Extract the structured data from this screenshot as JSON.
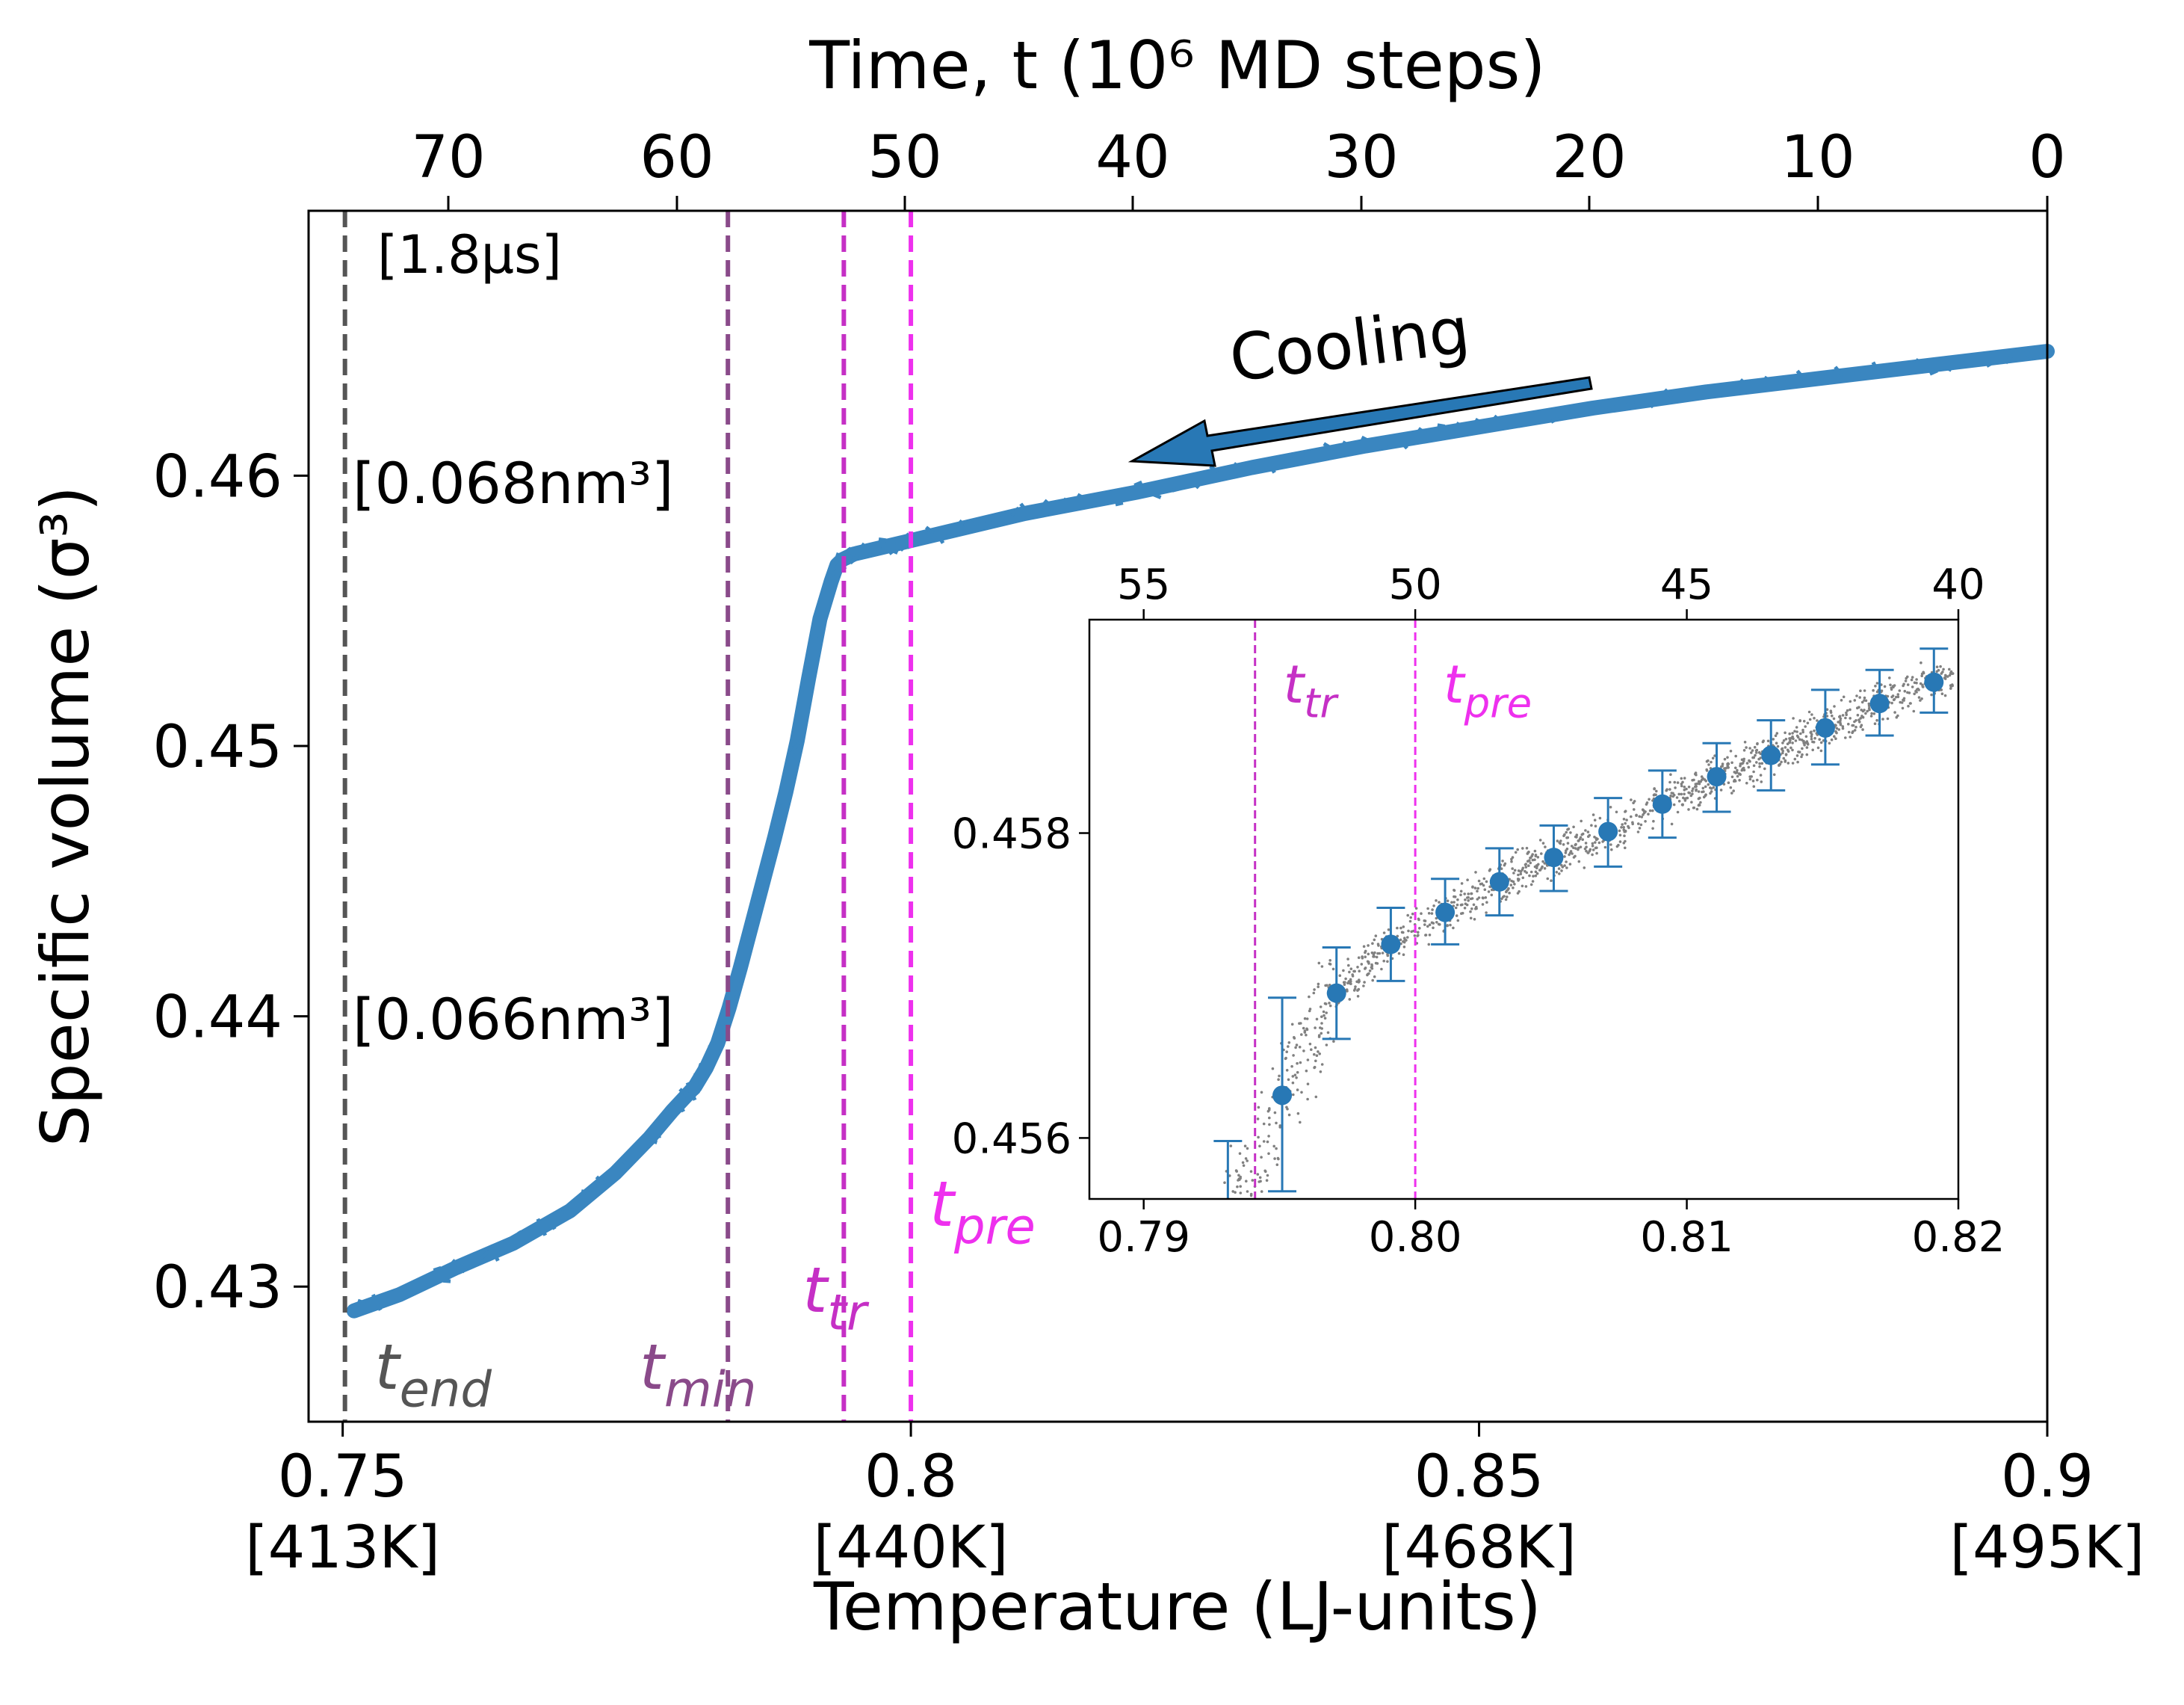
{
  "chart_data": [
    {
      "type": "line",
      "title": "",
      "xlabel": "Temperature (LJ-units)",
      "ylabel": "Specific volume (σ³)",
      "x2label": "Time, t (10⁶ MD steps)",
      "xlim": [
        0.747,
        0.9
      ],
      "ylim": [
        0.425,
        0.4698
      ],
      "xticks": [
        {
          "value": 0.75,
          "label": "0.75",
          "kelvin": "[413K]"
        },
        {
          "value": 0.8,
          "label": "0.8",
          "kelvin": "[440K]"
        },
        {
          "value": 0.85,
          "label": "0.85",
          "kelvin": "[468K]"
        },
        {
          "value": 0.9,
          "label": "0.9",
          "kelvin": "[495K]"
        }
      ],
      "yticks": [
        {
          "value": 0.43,
          "label": "0.43"
        },
        {
          "value": 0.44,
          "label": "0.44"
        },
        {
          "value": 0.45,
          "label": "0.45"
        },
        {
          "value": 0.46,
          "label": "0.46"
        }
      ],
      "top_axis_ticks": [
        {
          "label": "70",
          "temperature": 0.78
        },
        {
          "label": "60",
          "temperature": 0.78
        },
        {
          "label": "50",
          "temperature": 0.8
        },
        {
          "label": "40",
          "temperature": 0.82
        },
        {
          "label": "30",
          "temperature": 0.84
        },
        {
          "label": "20",
          "temperature": 0.86
        },
        {
          "label": "10",
          "temperature": 0.88
        },
        {
          "label": "0",
          "temperature": 0.9
        }
      ],
      "series": [
        {
          "color": "#3a86c0",
          "x": [
            0.751,
            0.755,
            0.76,
            0.765,
            0.77,
            0.774,
            0.777,
            0.779,
            0.781,
            0.782,
            0.783,
            0.784,
            0.785,
            0.786,
            0.787,
            0.788,
            0.789,
            0.79,
            0.791,
            0.792,
            0.793,
            0.7935,
            0.794,
            0.795,
            0.797,
            0.8,
            0.805,
            0.81,
            0.82,
            0.83,
            0.84,
            0.85,
            0.86,
            0.87,
            0.88,
            0.89,
            0.9
          ],
          "y": [
            0.4291,
            0.4297,
            0.4307,
            0.4316,
            0.4328,
            0.4342,
            0.4355,
            0.4365,
            0.4374,
            0.4381,
            0.439,
            0.4403,
            0.4418,
            0.4434,
            0.445,
            0.4466,
            0.4483,
            0.4502,
            0.4525,
            0.4547,
            0.4561,
            0.4567,
            0.4569,
            0.4571,
            0.4573,
            0.4576,
            0.4581,
            0.4586,
            0.4594,
            0.4603,
            0.4611,
            0.4618,
            0.4625,
            0.4631,
            0.4636,
            0.4641,
            0.4646
          ]
        }
      ],
      "vlines": [
        {
          "x": 0.7502,
          "label": "t_end",
          "base": "t",
          "sub": "end",
          "color": "#555555"
        },
        {
          "x": 0.7839,
          "label": "t_min",
          "base": "t",
          "sub": "min",
          "color": "#8a4a8a"
        },
        {
          "x": 0.7941,
          "label": "t_tr",
          "base": "t",
          "sub": "tr",
          "color": "#c530c5"
        },
        {
          "x": 0.8,
          "label": "t_pre",
          "base": "t",
          "sub": "pre",
          "color": "#ee30ee"
        }
      ],
      "annotations": [
        {
          "text": "[1.8μs]"
        },
        {
          "text": "[0.068nm³]"
        },
        {
          "text": "[0.066nm³]"
        },
        {
          "text": "Cooling",
          "arrow": "pointing toward lower temperature (left)"
        }
      ]
    },
    {
      "type": "scatter",
      "title": "",
      "position": "inset, lower-right of main plot",
      "xlim": [
        0.788,
        0.82
      ],
      "ylim": [
        0.4556,
        0.4594
      ],
      "xticks": [
        {
          "value": 0.79,
          "label": "0.79"
        },
        {
          "value": 0.8,
          "label": "0.80"
        },
        {
          "value": 0.81,
          "label": "0.81"
        },
        {
          "value": 0.82,
          "label": "0.82"
        }
      ],
      "yticks": [
        {
          "value": 0.456,
          "label": "0.456"
        },
        {
          "value": 0.458,
          "label": "0.458"
        }
      ],
      "top_axis_ticks": [
        {
          "label": "55",
          "temperature": 0.79
        },
        {
          "label": "50",
          "temperature": 0.8
        },
        {
          "label": "45",
          "temperature": 0.81
        },
        {
          "label": "40",
          "temperature": 0.82
        }
      ],
      "series": [
        {
          "color": "#2878b5",
          "x": [
            0.7931,
            0.7951,
            0.7971,
            0.7991,
            0.8011,
            0.8031,
            0.8051,
            0.8071,
            0.8091,
            0.8111,
            0.8131,
            0.8151,
            0.8171,
            0.8191
          ],
          "y": [
            0.4555,
            0.45628,
            0.45695,
            0.45727,
            0.45748,
            0.45768,
            0.45784,
            0.45801,
            0.45819,
            0.45837,
            0.45851,
            0.45869,
            0.45885,
            0.45899
          ],
          "yerr_low": [
            0.4551,
            0.45565,
            0.45665,
            0.45703,
            0.45727,
            0.45746,
            0.45762,
            0.45778,
            0.45797,
            0.45814,
            0.45828,
            0.45845,
            0.45864,
            0.45879
          ],
          "yerr_high": [
            0.45598,
            0.45692,
            0.45725,
            0.45751,
            0.4577,
            0.4579,
            0.45805,
            0.45823,
            0.45841,
            0.45859,
            0.45874,
            0.45894,
            0.45907,
            0.45921
          ]
        }
      ],
      "scatter_cloud": {
        "color": "#808080",
        "description": "raw samples scattered around the mean points"
      },
      "vlines": [
        {
          "x": 0.7941,
          "label": "t_tr",
          "base": "t",
          "sub": "tr",
          "color": "#c530c5"
        },
        {
          "x": 0.8,
          "label": "t_pre",
          "base": "t",
          "sub": "pre",
          "color": "#ee30ee"
        }
      ]
    }
  ]
}
